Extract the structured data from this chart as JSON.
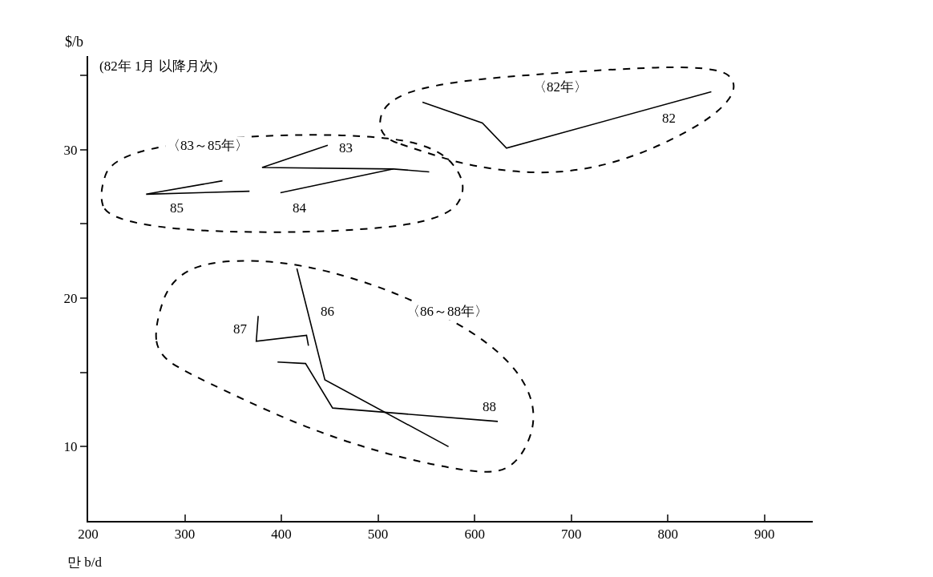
{
  "chart_data": {
    "type": "line",
    "ylabel": "$/b",
    "xlabel": "만 b/d",
    "annotations": [
      "(82年 1月 以降月次)",
      "〈82年〉",
      "〈83～85年〉",
      "〈86～88年〉"
    ],
    "xlim": [
      200,
      950
    ],
    "ylim": [
      5,
      36.3
    ],
    "xticks": [
      200,
      300,
      400,
      500,
      600,
      700,
      800,
      900
    ],
    "yticks": [
      10,
      {
        "value": 15,
        "label": null
      },
      20,
      {
        "value": 25,
        "label": null
      },
      30,
      {
        "value": 35,
        "label": null
      }
    ],
    "grid": false,
    "legend": false,
    "marker": "none",
    "line_style": "solid",
    "series": [
      {
        "name": "82",
        "color": "#000000",
        "x": [
          845,
          633,
          608,
          546
        ],
        "values": [
          33.9,
          30.1,
          31.8,
          33.2
        ]
      },
      {
        "name": "83",
        "color": "#000000",
        "x": [
          448,
          380,
          516,
          553
        ],
        "values": [
          30.3,
          28.8,
          28.7,
          28.5
        ]
      },
      {
        "name": "84",
        "color": "#000000",
        "x": [
          516,
          399
        ],
        "values": [
          28.7,
          27.1
        ]
      },
      {
        "name": "85",
        "color": "#000000",
        "x": [
          339,
          260,
          367
        ],
        "values": [
          27.9,
          27.0,
          27.2
        ]
      },
      {
        "name": "86",
        "color": "#000000",
        "x": [
          416,
          445,
          573
        ],
        "values": [
          22.0,
          14.5,
          10.0
        ]
      },
      {
        "name": "87",
        "color": "#000000",
        "x": [
          376,
          374,
          426,
          428
        ],
        "values": [
          18.8,
          17.1,
          17.5,
          16.8
        ]
      },
      {
        "name": "88",
        "color": "#000000",
        "x": [
          396,
          425,
          453,
          624
        ],
        "values": [
          15.7,
          15.6,
          12.6,
          11.7
        ]
      }
    ]
  }
}
